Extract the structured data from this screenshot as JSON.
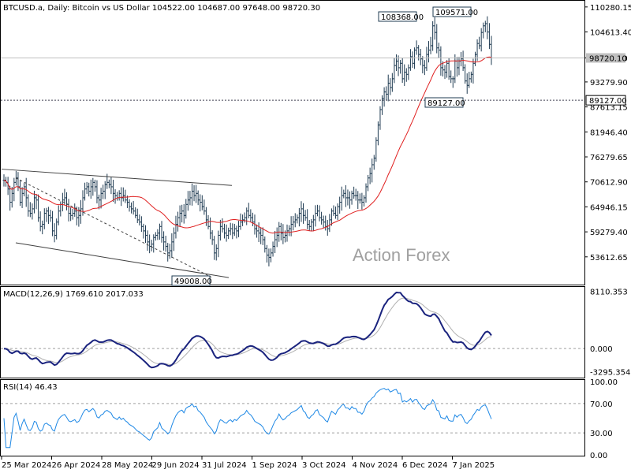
{
  "chart_data": {
    "type": "candlestick-ohlc",
    "symbol_header": "BTCUSD.a, Daily:  Bitcoin vs US Dollar  104522.00  104687.00  97648.00  98720.30",
    "watermark": "Action Forex",
    "price_panel": {
      "ylim": [
        47500,
        111500
      ],
      "y_ticks": [
        "110280.15",
        "104613.40",
        "98720.10",
        "93279.90",
        "87613.15",
        "81946.40",
        "76279.65",
        "70612.90",
        "64946.15",
        "59279.40",
        "53612.65"
      ],
      "current_price": {
        "label": "98720.10",
        "value": 98720.1
      },
      "support_line": {
        "label": "89127.00",
        "value": 89127
      },
      "callouts": [
        {
          "label": "108368.00",
          "value": 108368
        },
        {
          "label": "109571.00",
          "value": 109571
        },
        {
          "label": "89127.00",
          "value": 89127
        },
        {
          "label": "49008.00",
          "value": 49008
        }
      ],
      "x_labels": [
        "25 Mar 2024",
        "26 Apr 2024",
        "28 May 2024",
        "29 Jun 2024",
        "31 Jul 2024",
        "1 Sep 2024",
        "3 Oct 2024",
        "4 Nov 2024",
        "6 Dec 2024",
        "7 Jan 2025"
      ],
      "closes": [
        71000,
        70500,
        69000,
        66000,
        68000,
        70500,
        71500,
        69500,
        66000,
        68000,
        69500,
        67000,
        64000,
        63500,
        64500,
        67000,
        66500,
        62500,
        60500,
        61000,
        63500,
        64000,
        63000,
        62500,
        59500,
        58500,
        61500,
        64000,
        65500,
        66500,
        67000,
        65500,
        63500,
        63000,
        63500,
        64000,
        62500,
        63000,
        64500,
        67000,
        69000,
        69500,
        68500,
        69500,
        70500,
        69500,
        67000,
        66500,
        68000,
        68500,
        70000,
        70500,
        70000,
        69500,
        68000,
        67500,
        67000,
        68000,
        67000,
        67500,
        66500,
        66000,
        65000,
        64500,
        64000,
        63000,
        62000,
        61500,
        60500,
        59500,
        58500,
        57000,
        56000,
        56500,
        58000,
        58500,
        59000,
        60500,
        58000,
        57000,
        56000,
        54500,
        55000,
        57000,
        59000,
        61000,
        62500,
        63500,
        64000,
        63000,
        65500,
        66500,
        67000,
        68500,
        67500,
        68000,
        66500,
        66000,
        65000,
        64000,
        62000,
        60500,
        59000,
        57500,
        54500,
        55500,
        58500,
        60500,
        60000,
        59000,
        58500,
        59500,
        60000,
        59000,
        60000,
        59500,
        60500,
        61500,
        62000,
        62500,
        64000,
        63000,
        62500,
        61500,
        60000,
        59500,
        59000,
        58500,
        57500,
        55500,
        54000,
        53500,
        54500,
        56000,
        57500,
        58500,
        60500,
        59000,
        58000,
        58500,
        59500,
        60000,
        61000,
        61500,
        62000,
        62500,
        63500,
        64500,
        63000,
        62500,
        61000,
        60500,
        61500,
        62000,
        63500,
        64000,
        62500,
        62000,
        61500,
        60500,
        60000,
        62000,
        64000,
        63500,
        63000,
        65000,
        66000,
        67500,
        68000,
        67000,
        67000,
        66500,
        68000,
        67500,
        67500,
        66500,
        66500,
        66000,
        67000,
        69500,
        71500,
        72500,
        74500,
        76000,
        80000,
        83500,
        87000,
        89500,
        91000,
        90500,
        93000,
        92000,
        94000,
        97000,
        98000,
        96500,
        97500,
        94000,
        95500,
        95000,
        96500,
        99000,
        97500,
        100500,
        101000,
        99500,
        98500,
        97000,
        96500,
        99500,
        100500,
        101500,
        106000,
        104500,
        101000,
        100500,
        96500,
        96000,
        95500,
        97500,
        94500,
        94000,
        94000,
        98000,
        96500,
        98000,
        98500,
        96500,
        93500,
        92500,
        94000,
        95000,
        97500,
        99500,
        102000,
        101500,
        104500,
        106000,
        106500,
        104600,
        101800,
        98720
      ],
      "ma_note": "moving average"
    },
    "macd_panel": {
      "label": "MACD(12,26,9) 1769.610 2017.033",
      "ylim": [
        -4000,
        8500
      ],
      "y_ticks": [
        "8110.353",
        "0.000",
        "-3295.354"
      ]
    },
    "rsi_panel": {
      "label": "RSI(14) 46.43",
      "ylim": [
        0,
        100
      ],
      "y_ticks": [
        "100.00",
        "70.00",
        "30.00",
        "0.00"
      ]
    }
  }
}
